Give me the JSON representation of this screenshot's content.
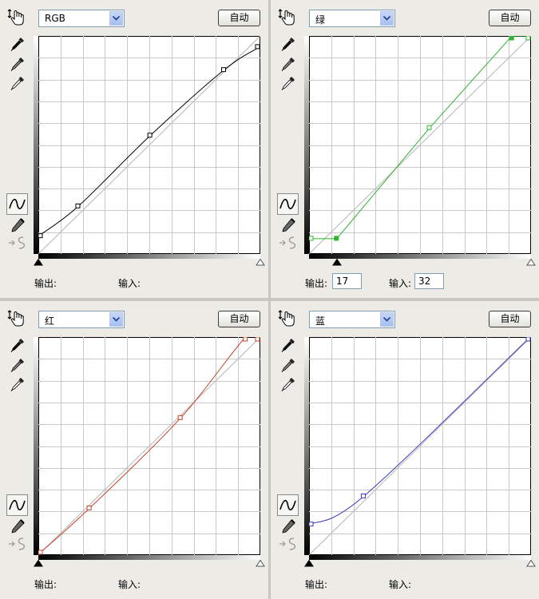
{
  "panels": [
    {
      "channel": "RGB",
      "auto_label": "自动",
      "output_label": "输出:",
      "input_label": "输入:",
      "output_value": "",
      "input_value": "",
      "show_values": false,
      "curve_color": "#000000",
      "points": [
        [
          0,
          20
        ],
        [
          46,
          55
        ],
        [
          129,
          138
        ],
        [
          214,
          215
        ],
        [
          255,
          242
        ]
      ],
      "line": "smooth",
      "low_marker": 0,
      "high_marker": 255
    },
    {
      "channel": "绿",
      "auto_label": "自动",
      "output_label": "输出:",
      "input_label": "输入:",
      "output_value": "17",
      "input_value": "32",
      "show_values": true,
      "curve_color": "#2fb52f",
      "points": [
        [
          0,
          17
        ],
        [
          32,
          17
        ],
        [
          139,
          147
        ],
        [
          234,
          255
        ],
        [
          255,
          255
        ]
      ],
      "line": "linear",
      "low_marker": 32,
      "high_marker": 255
    },
    {
      "channel": "红",
      "auto_label": "自动",
      "output_label": "输出:",
      "input_label": "输入:",
      "output_value": "",
      "input_value": "",
      "show_values": false,
      "curve_color": "#c8412b",
      "points": [
        [
          0,
          0
        ],
        [
          59,
          54
        ],
        [
          164,
          160
        ],
        [
          239,
          255
        ],
        [
          255,
          255
        ]
      ],
      "line": "smooth",
      "low_marker": 0,
      "high_marker": 255
    },
    {
      "channel": "蓝",
      "auto_label": "自动",
      "output_label": "输出:",
      "input_label": "输入:",
      "output_value": "",
      "input_value": "",
      "show_values": false,
      "curve_color": "#3a3ac0",
      "points": [
        [
          0,
          35
        ],
        [
          63,
          68
        ],
        [
          255,
          255
        ]
      ],
      "line": "smooth",
      "low_marker": 0,
      "high_marker": 255
    }
  ]
}
